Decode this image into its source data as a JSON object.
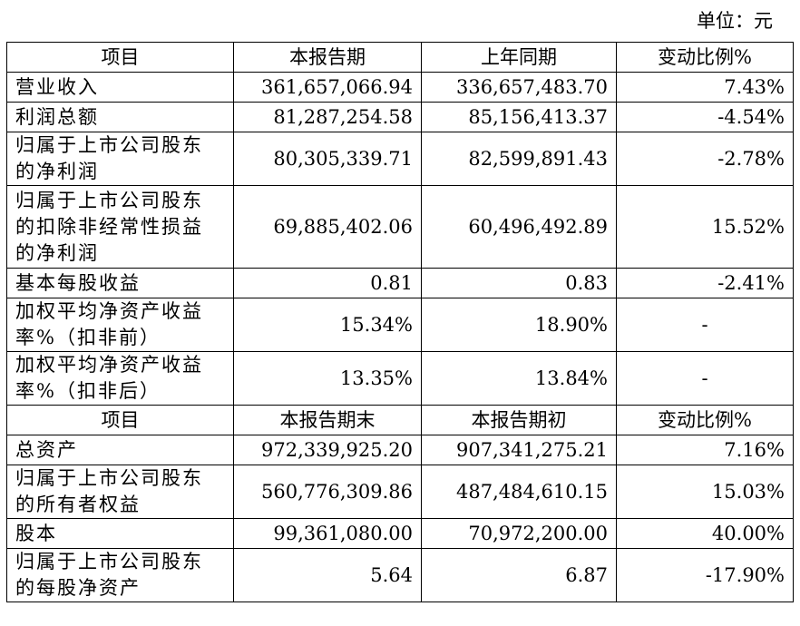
{
  "unit_label": "单位：元",
  "section1": {
    "headers": [
      "项目",
      "本报告期",
      "上年同期",
      "变动比例%"
    ],
    "rows": [
      {
        "label": [
          "营业收入"
        ],
        "current": "361,657,066.94",
        "prior": "336,657,483.70",
        "change": "7.43%"
      },
      {
        "label": [
          "利润总额"
        ],
        "current": "81,287,254.58",
        "prior": "85,156,413.37",
        "change": "-4.54%"
      },
      {
        "label": [
          "归属于上市公司股东",
          "的净利润"
        ],
        "current": "80,305,339.71",
        "prior": "82,599,891.43",
        "change": "-2.78%"
      },
      {
        "label": [
          "归属于上市公司股东",
          "的扣除非经常性损益",
          "的净利润"
        ],
        "current": "69,885,402.06",
        "prior": "60,496,492.89",
        "change": "15.52%"
      },
      {
        "label": [
          "基本每股收益"
        ],
        "current": "0.81",
        "prior": "0.83",
        "change": "-2.41%"
      },
      {
        "label": [
          "加权平均净资产收益",
          "率%（扣非前）"
        ],
        "current": "15.34%",
        "prior": "18.90%",
        "change": "-"
      },
      {
        "label": [
          "加权平均净资产收益",
          "率%（扣非后）"
        ],
        "current": "13.35%",
        "prior": "13.84%",
        "change": "-"
      }
    ]
  },
  "section2": {
    "headers": [
      "项目",
      "本报告期末",
      "本报告期初",
      "变动比例%"
    ],
    "rows": [
      {
        "label": [
          "总资产"
        ],
        "current": "972,339,925.20",
        "prior": "907,341,275.21",
        "change": "7.16%"
      },
      {
        "label": [
          "归属于上市公司股东",
          "的所有者权益"
        ],
        "current": "560,776,309.86",
        "prior": "487,484,610.15",
        "change": "15.03%"
      },
      {
        "label": [
          "股本"
        ],
        "current": "99,361,080.00",
        "prior": "70,972,200.00",
        "change": "40.00%"
      },
      {
        "label": [
          "归属于上市公司股东",
          "的每股净资产"
        ],
        "current": "5.64",
        "prior": "6.87",
        "change": "-17.90%"
      }
    ]
  }
}
